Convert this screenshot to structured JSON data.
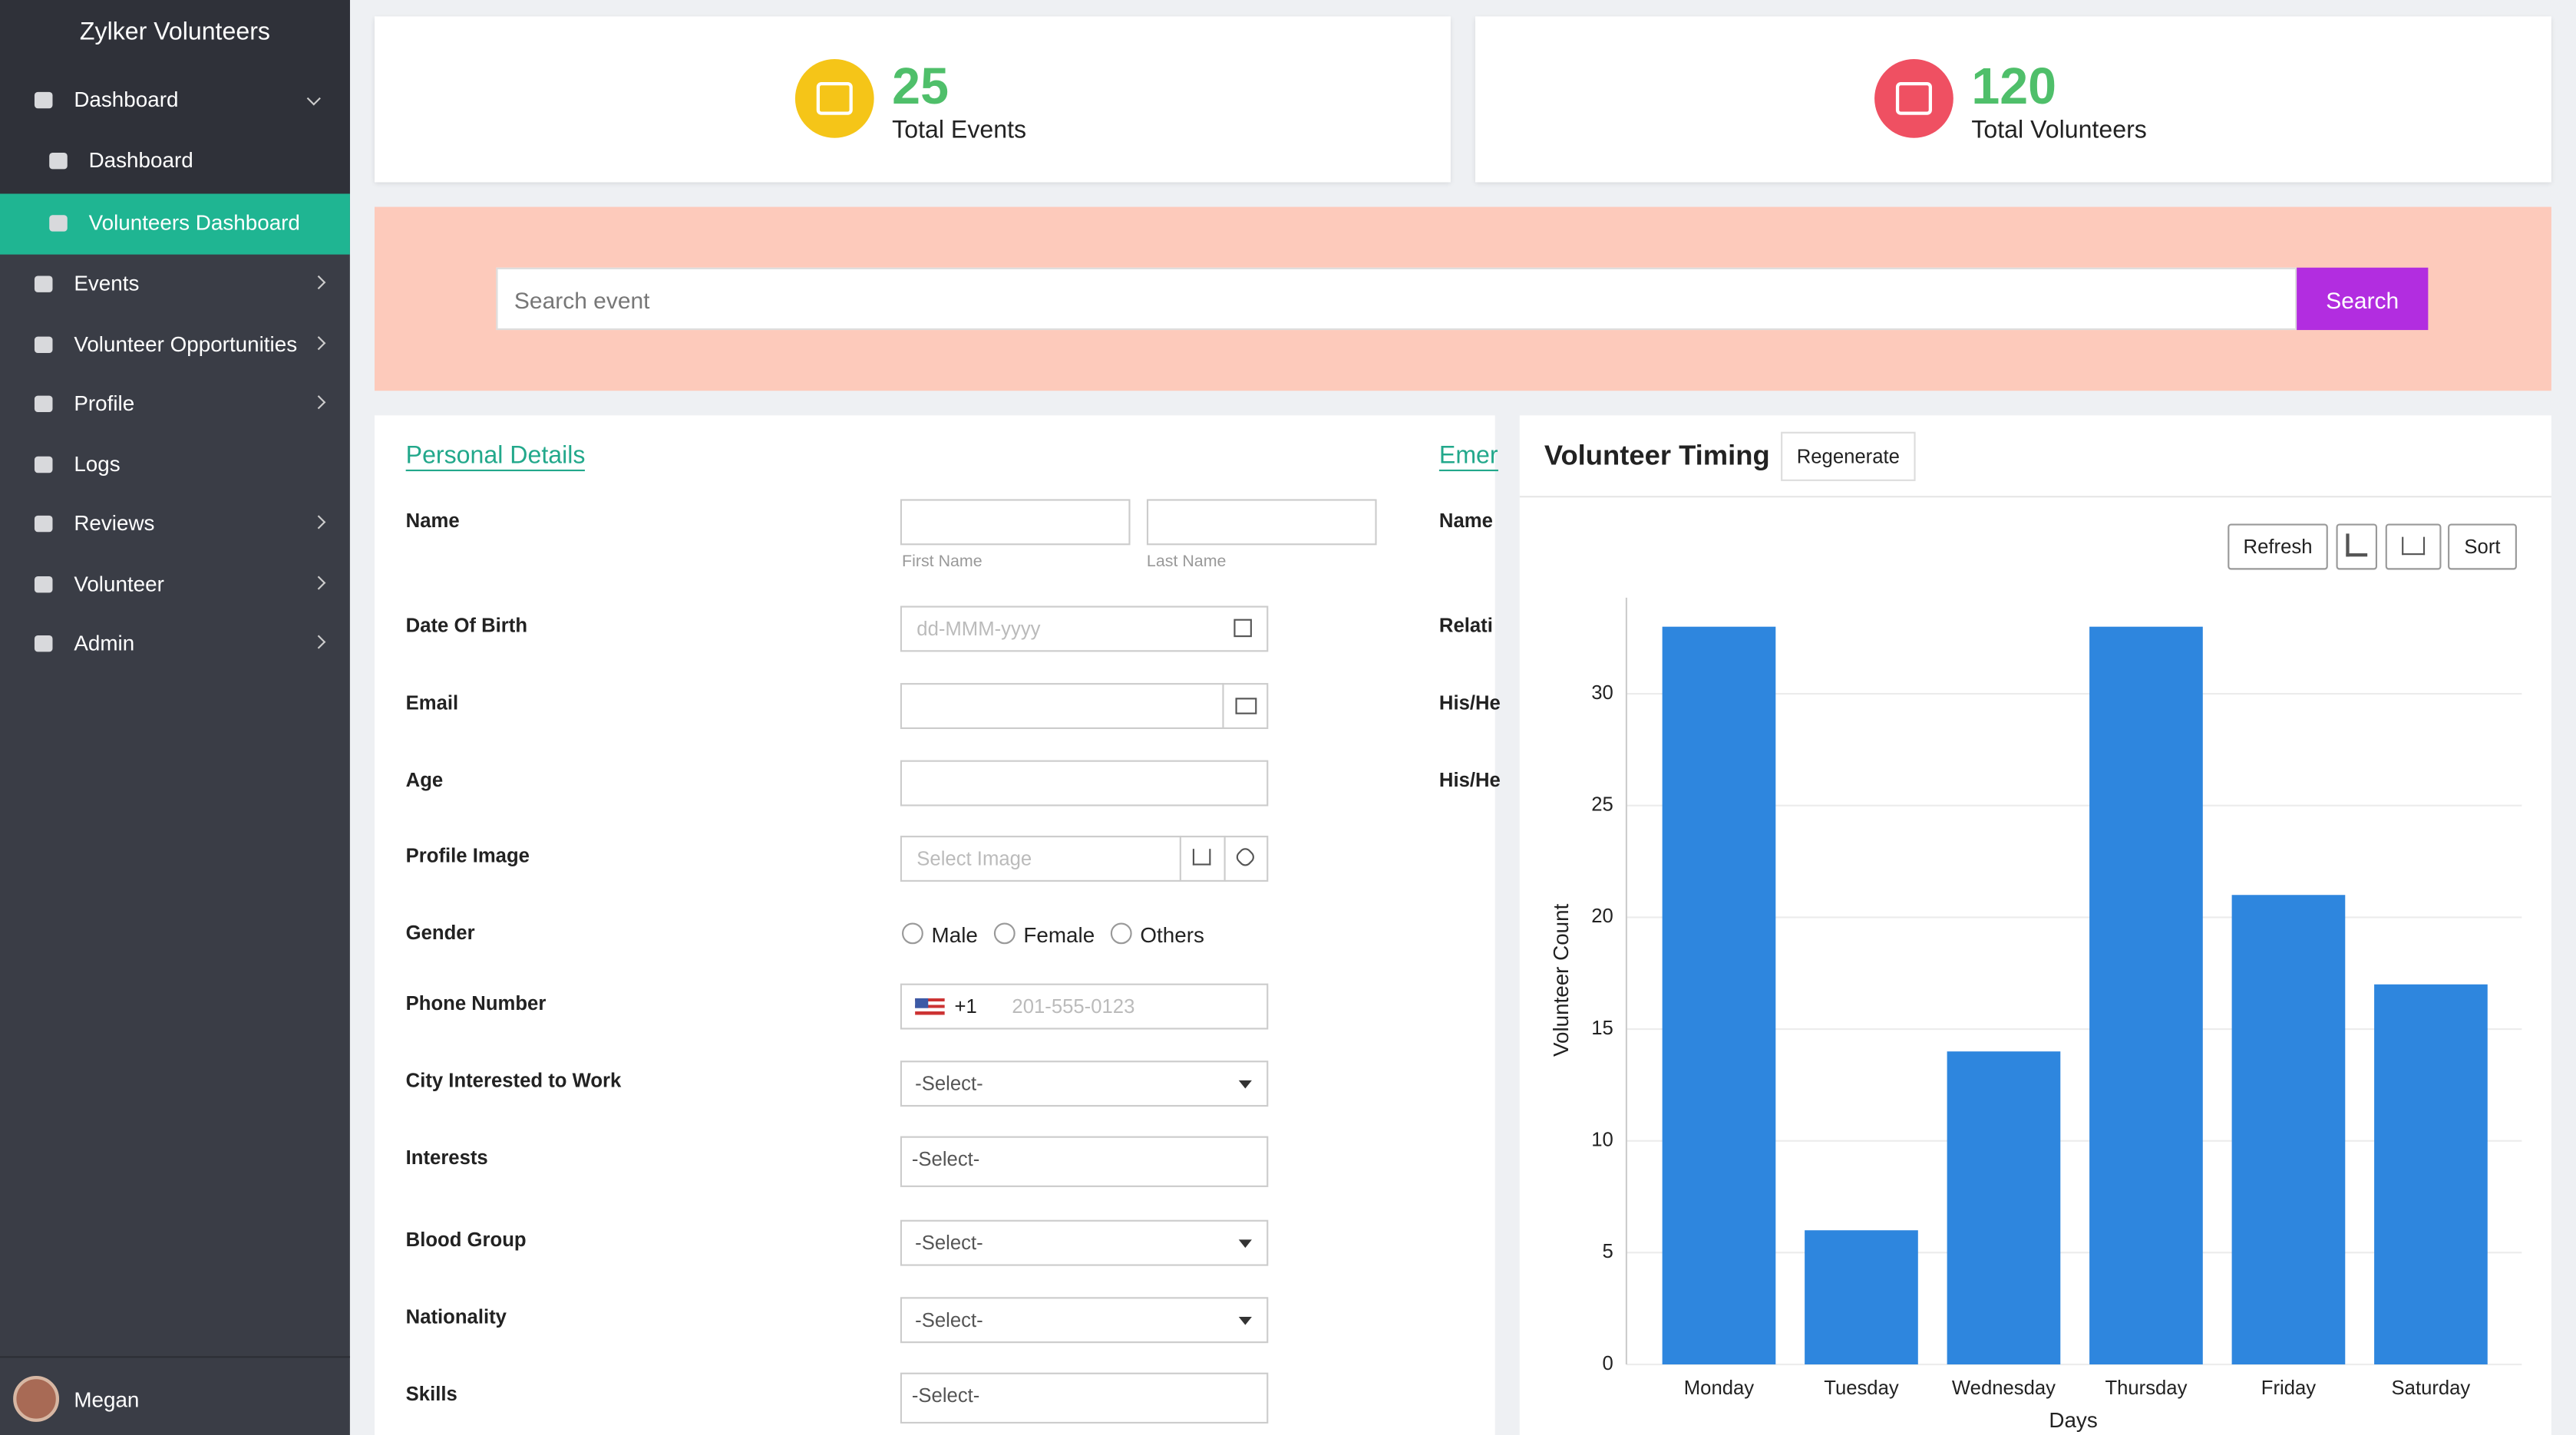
{
  "sidebar": {
    "brand": "Zylker Volunteers",
    "items": [
      "Dashboard",
      "Dashboard",
      "Volunteers Dashboard",
      "Events",
      "Volunteer Opportunities",
      "Profile",
      "Logs",
      "Reviews",
      "Volunteer",
      "Admin"
    ],
    "user": "Megan"
  },
  "stats": [
    {
      "value": "25",
      "label": "Total Events"
    },
    {
      "value": "120",
      "label": "Total Volunteers"
    }
  ],
  "search": {
    "placeholder": "Search event",
    "button": "Search"
  },
  "form": {
    "title": "Personal Details",
    "labels": [
      "Name",
      "Date Of Birth",
      "Email",
      "Age",
      "Profile Image",
      "Gender",
      "Phone Number",
      "City Interested to Work",
      "Interests",
      "Blood Group",
      "Nationality",
      "Skills"
    ],
    "name_hints": [
      "First Name",
      "Last Name"
    ],
    "date_placeholder": "dd-MMM-yyyy",
    "image_placeholder": "Select Image",
    "genders": [
      "Male",
      "Female",
      "Others"
    ],
    "phone_code": "+1",
    "phone_placeholder": "201-555-0123",
    "selects": [
      "-Select-",
      "-Select-",
      "-Select-",
      "-Select-",
      "-Select-"
    ]
  },
  "emergency": {
    "title": "Emer",
    "labels": [
      "Name",
      "Relati",
      "His/He",
      "His/He"
    ]
  },
  "chart_controls": {
    "regenerate": "Regenerate",
    "refresh": "Refresh",
    "sort": "Sort"
  },
  "chart_data": {
    "type": "bar",
    "title": "Volunteer Timing",
    "categories": [
      "Monday",
      "Tuesday",
      "Wednesday",
      "Thursday",
      "Friday",
      "Saturday"
    ],
    "values": [
      33,
      6,
      14,
      33,
      21,
      17
    ],
    "color": "#2e86de",
    "ylim": [
      0,
      34.3
    ],
    "yticks": [
      0,
      5,
      10,
      15,
      20,
      25,
      30
    ],
    "grid": true,
    "xlabel": "Days",
    "ylabel": "Volunteer Count"
  }
}
